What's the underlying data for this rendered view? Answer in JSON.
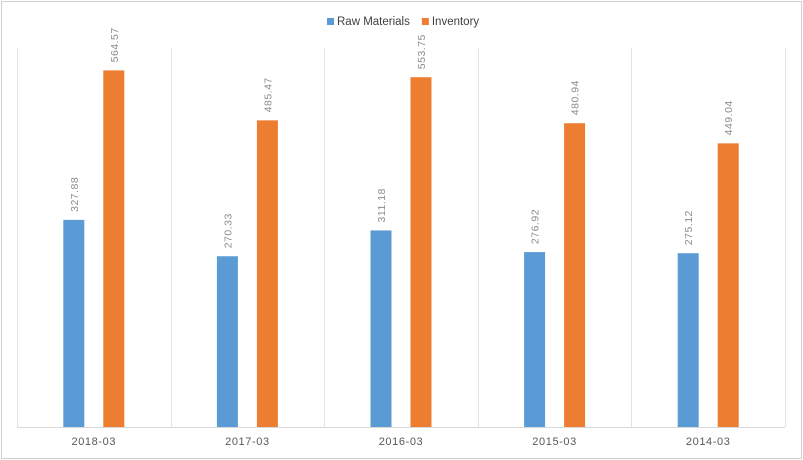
{
  "chart_data": {
    "type": "bar",
    "title": "",
    "xlabel": "",
    "ylabel": "",
    "categories": [
      "2018-03",
      "2017-03",
      "2016-03",
      "2015-03",
      "2014-03"
    ],
    "series": [
      {
        "name": "Raw Materials",
        "color": "#5b9bd5",
        "values": [
          327.88,
          270.33,
          311.18,
          276.92,
          275.12
        ]
      },
      {
        "name": "Inventory",
        "color": "#ed7d31",
        "values": [
          564.57,
          485.47,
          553.75,
          480.94,
          449.04
        ]
      }
    ],
    "ylim": [
      0,
      600
    ],
    "grid": "vertical category separators",
    "legend": "top-center"
  }
}
